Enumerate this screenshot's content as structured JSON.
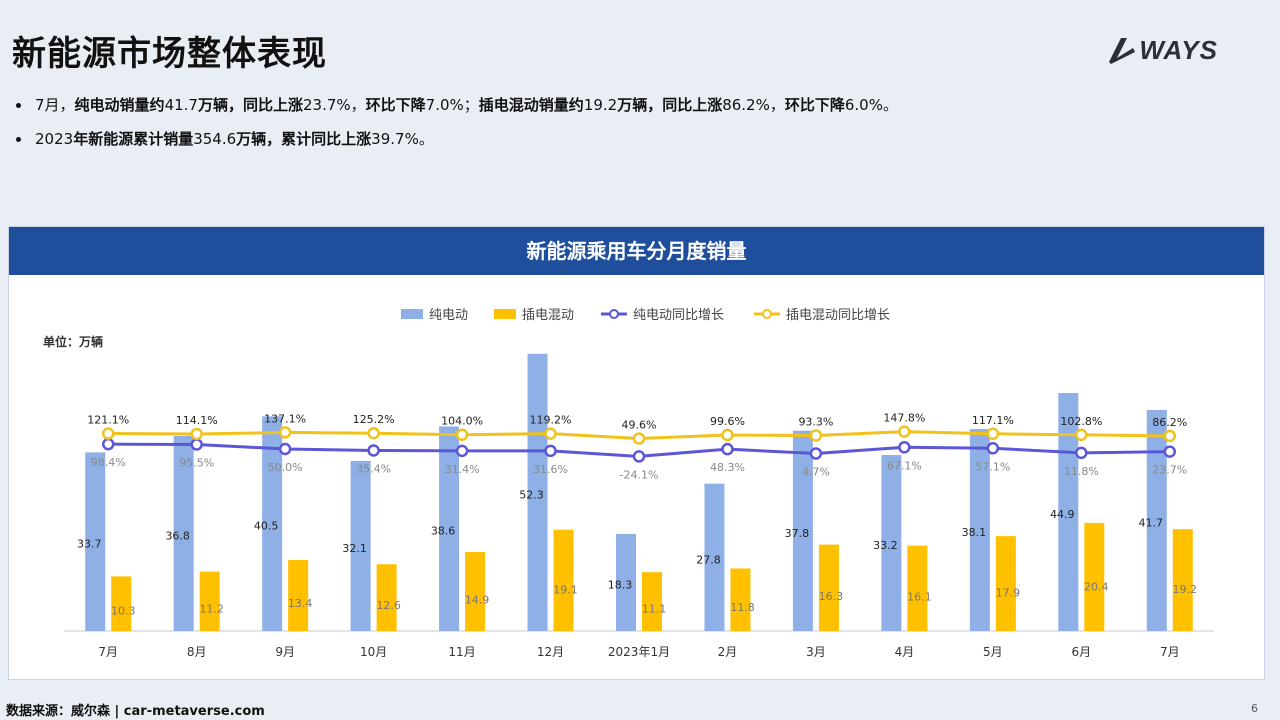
{
  "page": {
    "title": "新能源市场整体表现",
    "logo_text": "WAYS",
    "bullets": [
      {
        "parts": [
          {
            "t": "7月，",
            "b": false
          },
          {
            "t": "纯电动销量约",
            "b": true
          },
          {
            "t": "41.7",
            "b": false
          },
          {
            "t": "万辆，同比上涨",
            "b": true
          },
          {
            "t": "23.7%，",
            "b": false
          },
          {
            "t": "环比下降",
            "b": true
          },
          {
            "t": "7.0%；",
            "b": false
          },
          {
            "t": "插电混动销量约",
            "b": true
          },
          {
            "t": "19.2",
            "b": false
          },
          {
            "t": "万辆，同比上涨",
            "b": true
          },
          {
            "t": "86.2%，",
            "b": false
          },
          {
            "t": "环比下降",
            "b": true
          },
          {
            "t": "6.0%。",
            "b": false
          }
        ]
      },
      {
        "parts": [
          {
            "t": "2023",
            "b": false
          },
          {
            "t": "年新能源累计销量",
            "b": true
          },
          {
            "t": "354.6",
            "b": false
          },
          {
            "t": "万辆，累计同比上涨",
            "b": true
          },
          {
            "t": "39.7%。",
            "b": false
          }
        ]
      }
    ],
    "footer_source": "数据来源：威尔森 | car-metaverse.com",
    "page_number": "6"
  },
  "chart_data": {
    "type": "bar",
    "title": "新能源乘用车分月度销量",
    "unit_label": "单位：万辆",
    "categories": [
      "7月",
      "8月",
      "9月",
      "10月",
      "11月",
      "12月",
      "2023年1月",
      "2月",
      "3月",
      "4月",
      "5月",
      "6月",
      "7月"
    ],
    "series": [
      {
        "name": "纯电动",
        "kind": "bar",
        "color": "#8fb0e6",
        "values": [
          33.7,
          36.8,
          40.5,
          32.1,
          38.6,
          52.3,
          18.3,
          27.8,
          37.8,
          33.2,
          38.1,
          44.9,
          41.7
        ]
      },
      {
        "name": "插电混动",
        "kind": "bar",
        "color": "#ffc000",
        "values": [
          10.3,
          11.2,
          13.4,
          12.6,
          14.9,
          19.1,
          11.1,
          11.8,
          16.3,
          16.1,
          17.9,
          20.4,
          19.2
        ]
      },
      {
        "name": "纯电动同比增长",
        "kind": "line",
        "color": "#5b57d6",
        "labels": [
          "98.4%",
          "95.5%",
          "50.0%",
          "35.4%",
          "31.4%",
          "31.6%",
          "-24.1%",
          "48.3%",
          "4.7%",
          "67.1%",
          "57.1%",
          "11.8%",
          "23.7%"
        ]
      },
      {
        "name": "插电混动同比增长",
        "kind": "line",
        "color": "#f2c21b",
        "labels": [
          "121.1%",
          "114.1%",
          "137.1%",
          "125.2%",
          "104.0%",
          "119.2%",
          "49.6%",
          "99.6%",
          "93.3%",
          "147.8%",
          "117.1%",
          "102.8%",
          "86.2%"
        ]
      }
    ],
    "legend_position": "top-center",
    "grid": false
  }
}
